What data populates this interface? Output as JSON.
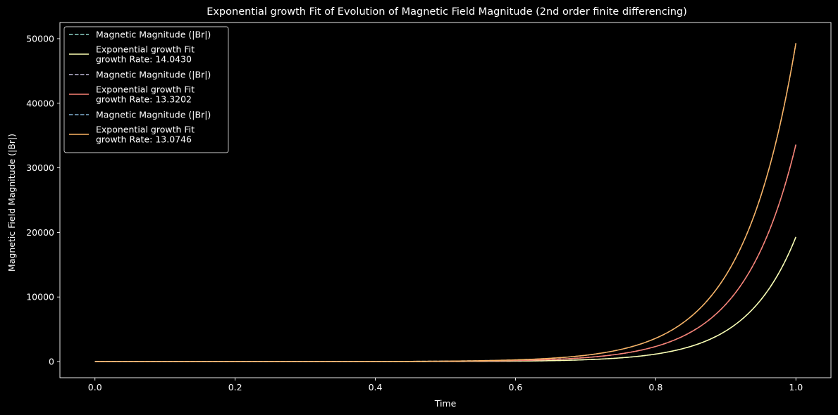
{
  "chart_data": {
    "type": "line",
    "title": "Exponential growth Fit of Evolution of Magnetic Field Magnitude (2nd order finite differencing)",
    "xlabel": "Time",
    "ylabel": "Magnetic Field Magnitude (|Br|)",
    "xlim": [
      -0.05,
      1.05
    ],
    "ylim": [
      -2500,
      52500
    ],
    "xticks": [
      0.0,
      0.2,
      0.4,
      0.6,
      0.8,
      1.0
    ],
    "xtick_labels": [
      "0.0",
      "0.2",
      "0.4",
      "0.6",
      "0.8",
      "1.0"
    ],
    "yticks": [
      0,
      10000,
      20000,
      30000,
      40000,
      50000
    ],
    "ytick_labels": [
      "0",
      "10000",
      "20000",
      "30000",
      "40000",
      "50000"
    ],
    "grid": false,
    "legend_position": "top-left",
    "background": "#000000",
    "series": [
      {
        "name": "Magnetic Magnitude (|Br|)",
        "style": "dashed",
        "color": "#8dd3c7",
        "model": "exponential",
        "rate": 14.043,
        "y_at_1": 19300
      },
      {
        "name": "Exponential growth Fit\ngrowth Rate: 14.0430",
        "style": "solid",
        "color": "#feffb3",
        "model": "exponential",
        "rate": 14.043,
        "y_at_1": 19300
      },
      {
        "name": "Magnetic Magnitude (|Br|)",
        "style": "dashed",
        "color": "#bfbbd9",
        "model": "exponential",
        "rate": 13.3202,
        "y_at_1": 33600
      },
      {
        "name": "Exponential growth Fit\ngrowth Rate: 13.3202",
        "style": "solid",
        "color": "#fa8174",
        "model": "exponential",
        "rate": 13.3202,
        "y_at_1": 33600
      },
      {
        "name": "Magnetic Magnitude (|Br|)",
        "style": "dashed",
        "color": "#81b1d2",
        "model": "exponential",
        "rate": 13.0746,
        "y_at_1": 49300
      },
      {
        "name": "Exponential growth Fit\ngrowth Rate: 13.0746",
        "style": "solid",
        "color": "#fdb462",
        "model": "exponential",
        "rate": 13.0746,
        "y_at_1": 49300
      }
    ]
  }
}
